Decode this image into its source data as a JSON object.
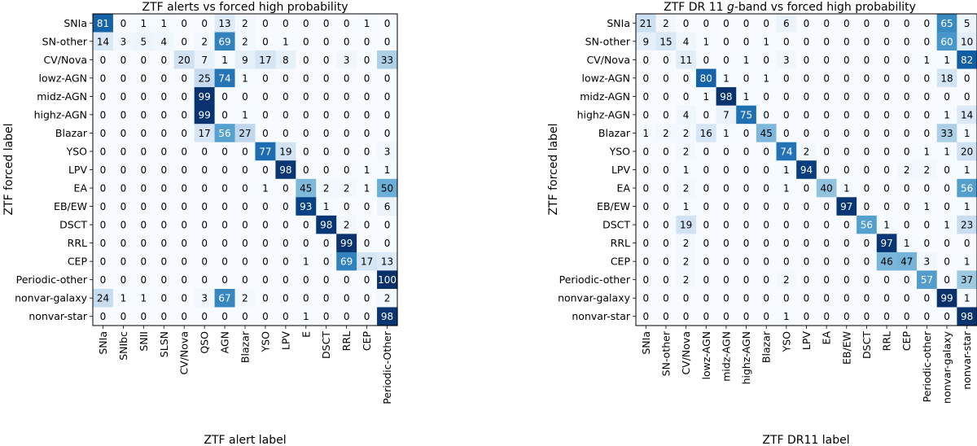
{
  "chart_data": [
    {
      "type": "heatmap",
      "title": "ZTF alerts vs forced high probability",
      "xlabel": "ZTF alert label",
      "ylabel": "ZTF forced label",
      "row_labels": [
        "SNIa",
        "SN-other",
        "CV/Nova",
        "lowz-AGN",
        "midz-AGN",
        "highz-AGN",
        "Blazar",
        "YSO",
        "LPV",
        "EA",
        "EB/EW",
        "DSCT",
        "RRL",
        "CEP",
        "Periodic-other",
        "nonvar-galaxy",
        "nonvar-star"
      ],
      "col_labels": [
        "SNIa",
        "SNIbc",
        "SNII",
        "SLSN",
        "CV/Nova",
        "QSO",
        "AGN",
        "Blazar",
        "YSO",
        "LPV",
        "E",
        "DSCT",
        "RRL",
        "CEP",
        "Periodic-Other"
      ],
      "values": [
        [
          81,
          0,
          1,
          1,
          0,
          0,
          13,
          2,
          0,
          0,
          0,
          0,
          0,
          1,
          0
        ],
        [
          14,
          3,
          5,
          4,
          0,
          2,
          69,
          2,
          0,
          1,
          0,
          0,
          0,
          0,
          0
        ],
        [
          0,
          0,
          0,
          0,
          20,
          7,
          1,
          9,
          17,
          8,
          0,
          0,
          3,
          0,
          33
        ],
        [
          0,
          0,
          0,
          0,
          0,
          25,
          74,
          1,
          0,
          0,
          0,
          0,
          0,
          0,
          0
        ],
        [
          0,
          0,
          0,
          0,
          0,
          99,
          0,
          0,
          0,
          0,
          0,
          0,
          0,
          0,
          0
        ],
        [
          0,
          0,
          0,
          0,
          0,
          99,
          0,
          1,
          0,
          0,
          0,
          0,
          0,
          0,
          0
        ],
        [
          0,
          0,
          0,
          0,
          0,
          17,
          56,
          27,
          0,
          0,
          0,
          0,
          0,
          0,
          0
        ],
        [
          0,
          0,
          0,
          0,
          0,
          0,
          0,
          0,
          77,
          19,
          0,
          0,
          0,
          0,
          3
        ],
        [
          0,
          0,
          0,
          0,
          0,
          0,
          0,
          0,
          0,
          98,
          0,
          0,
          0,
          1,
          1
        ],
        [
          0,
          0,
          0,
          0,
          0,
          0,
          0,
          0,
          1,
          0,
          45,
          2,
          2,
          1,
          50
        ],
        [
          0,
          0,
          0,
          0,
          0,
          0,
          0,
          0,
          0,
          0,
          93,
          1,
          0,
          0,
          6
        ],
        [
          0,
          0,
          0,
          0,
          0,
          0,
          0,
          0,
          0,
          0,
          0,
          98,
          2,
          0,
          0
        ],
        [
          0,
          0,
          0,
          0,
          0,
          0,
          0,
          0,
          0,
          0,
          0,
          0,
          99,
          0,
          0
        ],
        [
          0,
          0,
          0,
          0,
          0,
          0,
          0,
          0,
          0,
          0,
          1,
          0,
          69,
          17,
          13
        ],
        [
          0,
          0,
          0,
          0,
          0,
          0,
          0,
          0,
          0,
          0,
          0,
          0,
          0,
          0,
          100
        ],
        [
          24,
          1,
          1,
          0,
          0,
          3,
          67,
          2,
          0,
          0,
          0,
          0,
          0,
          0,
          2
        ],
        [
          0,
          0,
          0,
          0,
          0,
          0,
          0,
          0,
          0,
          0,
          1,
          0,
          0,
          0,
          98
        ]
      ]
    },
    {
      "type": "heatmap",
      "title": "ZTF DR 11 g-band vs forced high probability",
      "title_parts": [
        "ZTF DR 11 ",
        "g",
        "-band vs forced high probability"
      ],
      "xlabel": "ZTF DR11 label",
      "ylabel": "ZTF forced label",
      "row_labels": [
        "SNIa",
        "SN-other",
        "CV/Nova",
        "lowz-AGN",
        "midz-AGN",
        "highz-AGN",
        "Blazar",
        "YSO",
        "LPV",
        "EA",
        "EB/EW",
        "DSCT",
        "RRL",
        "CEP",
        "Periodic-other",
        "nonvar-galaxy",
        "nonvar-star"
      ],
      "col_labels": [
        "SNIa",
        "SN-other",
        "CV/Nova",
        "lowz-AGN",
        "midz-AGN",
        "highz-AGN",
        "Blazar",
        "YSO",
        "LPV",
        "EA",
        "EB/EW",
        "DSCT",
        "RRL",
        "CEP",
        "Periodic-other",
        "nonvar-galaxy",
        "nonvar-star"
      ],
      "values": [
        [
          21,
          2,
          0,
          0,
          0,
          0,
          0,
          6,
          0,
          0,
          0,
          0,
          0,
          0,
          0,
          65,
          5
        ],
        [
          9,
          15,
          4,
          1,
          0,
          0,
          1,
          0,
          0,
          0,
          0,
          0,
          0,
          0,
          0,
          60,
          10
        ],
        [
          0,
          0,
          11,
          0,
          0,
          1,
          0,
          3,
          0,
          0,
          0,
          0,
          0,
          0,
          1,
          1,
          82
        ],
        [
          0,
          0,
          0,
          80,
          1,
          0,
          1,
          0,
          0,
          0,
          0,
          0,
          0,
          0,
          0,
          18,
          0
        ],
        [
          0,
          0,
          0,
          1,
          98,
          1,
          0,
          0,
          0,
          0,
          0,
          0,
          0,
          0,
          0,
          0,
          0
        ],
        [
          0,
          0,
          4,
          0,
          7,
          75,
          0,
          0,
          0,
          0,
          0,
          0,
          0,
          0,
          0,
          1,
          14
        ],
        [
          1,
          2,
          2,
          16,
          1,
          0,
          45,
          0,
          0,
          0,
          0,
          0,
          0,
          0,
          0,
          33,
          1
        ],
        [
          0,
          0,
          2,
          0,
          0,
          0,
          0,
          74,
          2,
          0,
          0,
          0,
          0,
          0,
          1,
          1,
          20
        ],
        [
          0,
          0,
          1,
          0,
          0,
          0,
          0,
          1,
          94,
          0,
          0,
          0,
          0,
          2,
          2,
          0,
          1
        ],
        [
          0,
          0,
          2,
          0,
          0,
          0,
          0,
          1,
          0,
          40,
          1,
          0,
          0,
          0,
          0,
          0,
          56
        ],
        [
          0,
          0,
          1,
          0,
          0,
          0,
          0,
          0,
          0,
          0,
          97,
          0,
          0,
          0,
          1,
          0,
          1
        ],
        [
          0,
          0,
          19,
          0,
          0,
          0,
          0,
          0,
          0,
          0,
          0,
          56,
          1,
          0,
          0,
          1,
          23
        ],
        [
          0,
          0,
          2,
          0,
          0,
          0,
          0,
          0,
          0,
          0,
          0,
          0,
          97,
          1,
          0,
          0,
          0
        ],
        [
          0,
          0,
          2,
          0,
          0,
          0,
          0,
          0,
          0,
          0,
          0,
          0,
          46,
          47,
          3,
          0,
          1
        ],
        [
          0,
          0,
          2,
          0,
          0,
          0,
          0,
          2,
          0,
          0,
          0,
          0,
          0,
          0,
          57,
          0,
          37
        ],
        [
          0,
          0,
          0,
          0,
          0,
          0,
          0,
          0,
          0,
          0,
          0,
          0,
          0,
          0,
          0,
          99,
          1
        ],
        [
          0,
          0,
          0,
          0,
          0,
          0,
          0,
          1,
          0,
          0,
          0,
          0,
          0,
          0,
          0,
          0,
          98
        ]
      ]
    }
  ]
}
